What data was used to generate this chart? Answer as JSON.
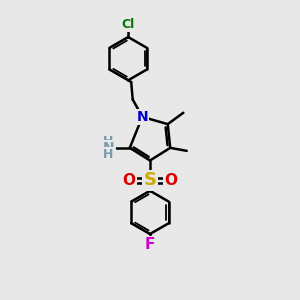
{
  "background_color": "#e8e8e8",
  "line_color": "#000000",
  "bond_width": 1.8,
  "figsize": [
    3.0,
    3.0
  ],
  "dpi": 100,
  "xlim": [
    0,
    10
  ],
  "ylim": [
    0,
    10
  ],
  "colors": {
    "N": "#0000cc",
    "O": "#dd0000",
    "S": "#ccaa00",
    "Cl": "#007700",
    "F": "#cc00cc",
    "NH2": "#7799aa",
    "black": "#000000"
  }
}
